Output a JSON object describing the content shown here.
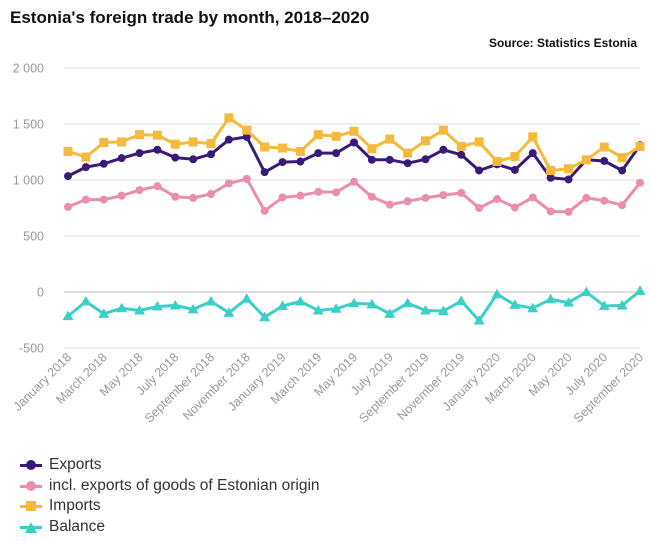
{
  "header": {
    "title": "Estonia's foreign trade by month, 2018–2020",
    "source": "Source: Statistics Estonia"
  },
  "chart_data": {
    "type": "line",
    "title": "Estonia's foreign trade by month, 2018–2020",
    "xlabel": "",
    "ylabel": "",
    "ylim": [
      -500,
      2000
    ],
    "yticks": [
      -500,
      0,
      500,
      1000,
      1500,
      2000
    ],
    "ytick_labels": [
      "-500",
      "0",
      "500",
      "1 000",
      "1 500",
      "2 000"
    ],
    "grid": "horizontal",
    "legend_position": "bottom-left",
    "x": [
      "January 2018",
      "February 2018",
      "March 2018",
      "April 2018",
      "May 2018",
      "June 2018",
      "July 2018",
      "August 2018",
      "September 2018",
      "October 2018",
      "November 2018",
      "December 2018",
      "January 2019",
      "February 2019",
      "March 2019",
      "April 2019",
      "May 2019",
      "June 2019",
      "July 2019",
      "August 2019",
      "September 2019",
      "October 2019",
      "November 2019",
      "December 2019",
      "January 2020",
      "February 2020",
      "March 2020",
      "April 2020",
      "May 2020",
      "June 2020",
      "July 2020",
      "August 2020",
      "September 2020"
    ],
    "xtick_labels": [
      "January 2018",
      "March 2018",
      "May 2018",
      "July 2018",
      "September 2018",
      "November 2018",
      "January 2019",
      "March 2019",
      "May 2019",
      "July 2019",
      "September 2019",
      "November 2019",
      "January 2020",
      "March 2020",
      "May 2020",
      "July 2020",
      "September 2020"
    ],
    "series": [
      {
        "name": "Exports",
        "color": "#3a1a78",
        "marker": "circle",
        "values": [
          1035,
          1115,
          1145,
          1195,
          1240,
          1270,
          1200,
          1185,
          1230,
          1360,
          1385,
          1070,
          1160,
          1165,
          1240,
          1240,
          1335,
          1180,
          1180,
          1150,
          1185,
          1270,
          1225,
          1085,
          1140,
          1090,
          1240,
          1020,
          1005,
          1180,
          1170,
          1085,
          1310
        ]
      },
      {
        "name": "incl. exports of goods of Estonian origin",
        "color": "#ea8db0",
        "marker": "circle",
        "values": [
          760,
          825,
          825,
          860,
          910,
          945,
          850,
          840,
          875,
          970,
          1010,
          725,
          845,
          860,
          895,
          890,
          985,
          850,
          780,
          810,
          840,
          865,
          885,
          750,
          830,
          755,
          845,
          720,
          715,
          840,
          815,
          775,
          975
        ]
      },
      {
        "name": "Imports",
        "color": "#f5b93c",
        "marker": "square",
        "values": [
          1255,
          1205,
          1335,
          1340,
          1405,
          1400,
          1320,
          1340,
          1325,
          1555,
          1445,
          1295,
          1285,
          1255,
          1405,
          1390,
          1435,
          1280,
          1365,
          1240,
          1350,
          1445,
          1300,
          1340,
          1165,
          1210,
          1385,
          1085,
          1100,
          1180,
          1295,
          1200,
          1300
        ]
      },
      {
        "name": "Balance",
        "color": "#3ccfc8",
        "marker": "triangle",
        "values": [
          -215,
          -85,
          -195,
          -145,
          -165,
          -130,
          -120,
          -155,
          -85,
          -185,
          -60,
          -225,
          -125,
          -85,
          -165,
          -150,
          -100,
          -110,
          -195,
          -100,
          -165,
          -170,
          -80,
          -255,
          -20,
          -115,
          -145,
          -65,
          -95,
          0,
          -125,
          -120,
          10
        ]
      }
    ]
  }
}
